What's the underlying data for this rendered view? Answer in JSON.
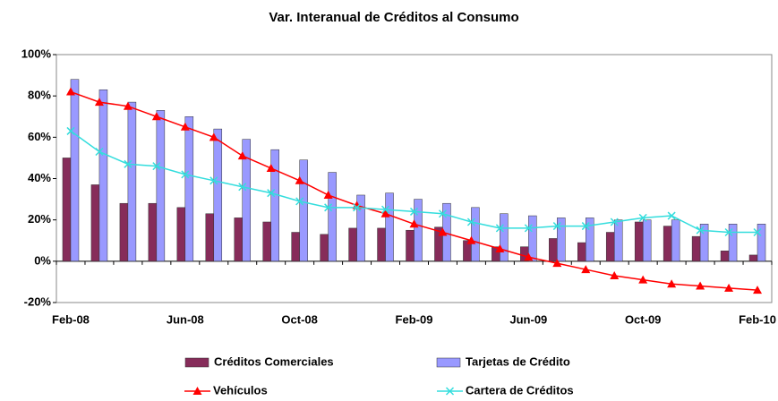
{
  "chart_data": {
    "type": "combo",
    "title": "Var. Interanual de Créditos al Consumo",
    "categories": [
      "Feb-08",
      null,
      null,
      null,
      "Jun-08",
      null,
      null,
      null,
      "Oct-08",
      null,
      null,
      null,
      "Feb-09",
      null,
      null,
      null,
      "Jun-09",
      null,
      null,
      null,
      "Oct-09",
      null,
      null,
      null,
      "Feb-10"
    ],
    "ylim": [
      -20,
      100
    ],
    "yticks": [
      {
        "value": -20,
        "label": "-20%"
      },
      {
        "value": 0,
        "label": "0%"
      },
      {
        "value": 20,
        "label": "20%"
      },
      {
        "value": 40,
        "label": "40%"
      },
      {
        "value": 60,
        "label": "60%"
      },
      {
        "value": 80,
        "label": "80%"
      },
      {
        "value": 100,
        "label": "100%"
      }
    ],
    "grid": false,
    "series": [
      {
        "name": "Créditos Comerciales",
        "type": "bar",
        "color": "#862c5a",
        "values": [
          50,
          37,
          28,
          28,
          26,
          23,
          21,
          19,
          14,
          13,
          16,
          16,
          15,
          16.5,
          10,
          7,
          7,
          11,
          9,
          14,
          19,
          17,
          12,
          5,
          3
        ]
      },
      {
        "name": "Tarjetas de Crédito",
        "type": "bar",
        "color": "#9999ff",
        "values": [
          88,
          83,
          77,
          73,
          70,
          64,
          59,
          54,
          49,
          43,
          32,
          33,
          30,
          28,
          26,
          23,
          22,
          21,
          21,
          20,
          20,
          20,
          18,
          18,
          18
        ]
      },
      {
        "name": "Vehículos",
        "type": "line",
        "marker": "triangle",
        "color": "#ff0000",
        "values": [
          82,
          77,
          75,
          70,
          65,
          60,
          51,
          45,
          39,
          32,
          27,
          23,
          18,
          14,
          10,
          6,
          2,
          -1,
          -4,
          -7,
          -9,
          -11,
          -12,
          -13,
          -14
        ]
      },
      {
        "name": "Cartera de Créditos",
        "type": "line",
        "marker": "x",
        "color": "#33dddd",
        "values": [
          63,
          53,
          47,
          46,
          42,
          39,
          36,
          33,
          29,
          26,
          26,
          25,
          24,
          23,
          19,
          16,
          16,
          17,
          17,
          19,
          21,
          22,
          15,
          14,
          14
        ]
      }
    ]
  }
}
